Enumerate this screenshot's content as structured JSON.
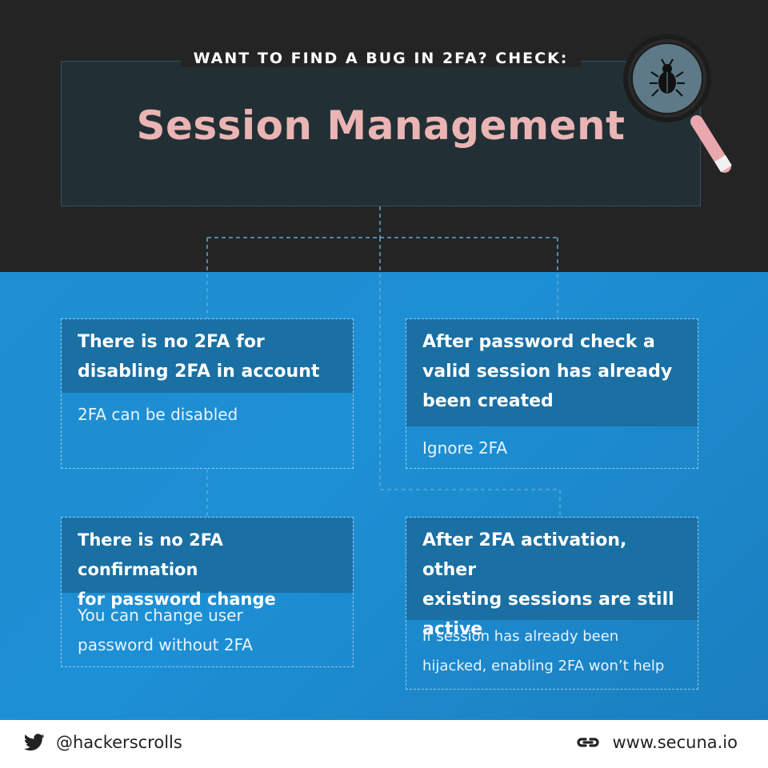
{
  "header": {
    "subtitle": "WANT TO FIND A BUG IN 2FA? CHECK:",
    "title": "Session Management",
    "icon": "magnifier-bug-icon"
  },
  "cards": [
    {
      "heading_lines": [
        "There is no 2FA for",
        "disabling 2FA in account"
      ],
      "body_lines": [
        "2FA can be disabled"
      ]
    },
    {
      "heading_lines": [
        "After password check a",
        "valid session has already",
        "been created"
      ],
      "body_lines": [
        "Ignore 2FA"
      ]
    },
    {
      "heading_lines": [
        "There is no 2FA confirmation",
        "for password change"
      ],
      "body_lines": [
        "You can change user",
        "password without 2FA"
      ]
    },
    {
      "heading_lines": [
        "After 2FA activation, other",
        "existing sessions are still",
        "active"
      ],
      "body_lines": [
        "If session has already been",
        "hijacked, enabling 2FA won’t help"
      ]
    }
  ],
  "footer": {
    "twitter_handle": "@hackerscrolls",
    "website": "www.secuna.io",
    "icons": [
      "twitter-bird-icon",
      "link-icon"
    ]
  },
  "colors": {
    "dark_bg": "#242424",
    "blue_bg": "#1d8fd4",
    "title_pink": "#ebb4b4",
    "card_head": "#1a6fa3"
  }
}
